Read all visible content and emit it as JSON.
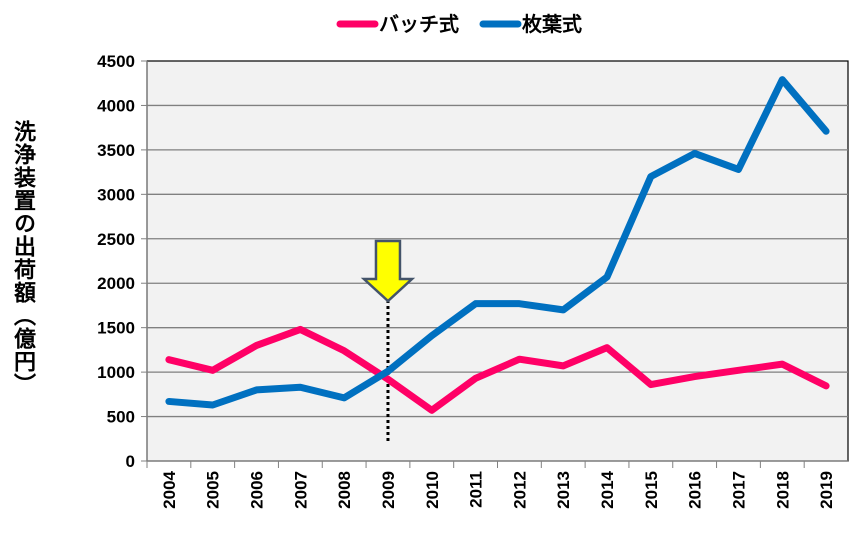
{
  "chart_data": {
    "type": "line",
    "title": "",
    "xlabel": "",
    "ylabel": "洗浄装置の出荷額（億円）",
    "x": [
      "2004",
      "2005",
      "2006",
      "2007",
      "2008",
      "2009",
      "2010",
      "2011",
      "2012",
      "2013",
      "2014",
      "2015",
      "2016",
      "2017",
      "2018",
      "2019"
    ],
    "ylim": [
      0,
      4500
    ],
    "yticks": [
      0,
      500,
      1000,
      1500,
      2000,
      2500,
      3000,
      3500,
      4000,
      4500
    ],
    "grid": true,
    "legend_position": "top",
    "series": [
      {
        "name": "バッチ式",
        "color": "#ff0066",
        "values": [
          1140,
          1020,
          1300,
          1480,
          1240,
          920,
          570,
          930,
          1145,
          1070,
          1275,
          860,
          950,
          1020,
          1090,
          845
        ]
      },
      {
        "name": "枚葉式",
        "color": "#0070c0",
        "values": [
          670,
          630,
          800,
          830,
          710,
          1010,
          1410,
          1770,
          1770,
          1700,
          2070,
          3200,
          3460,
          3280,
          4290,
          3710
        ]
      }
    ],
    "annotation": {
      "type": "arrow-marker",
      "at_x": "2009",
      "color": "#ffff00"
    }
  }
}
